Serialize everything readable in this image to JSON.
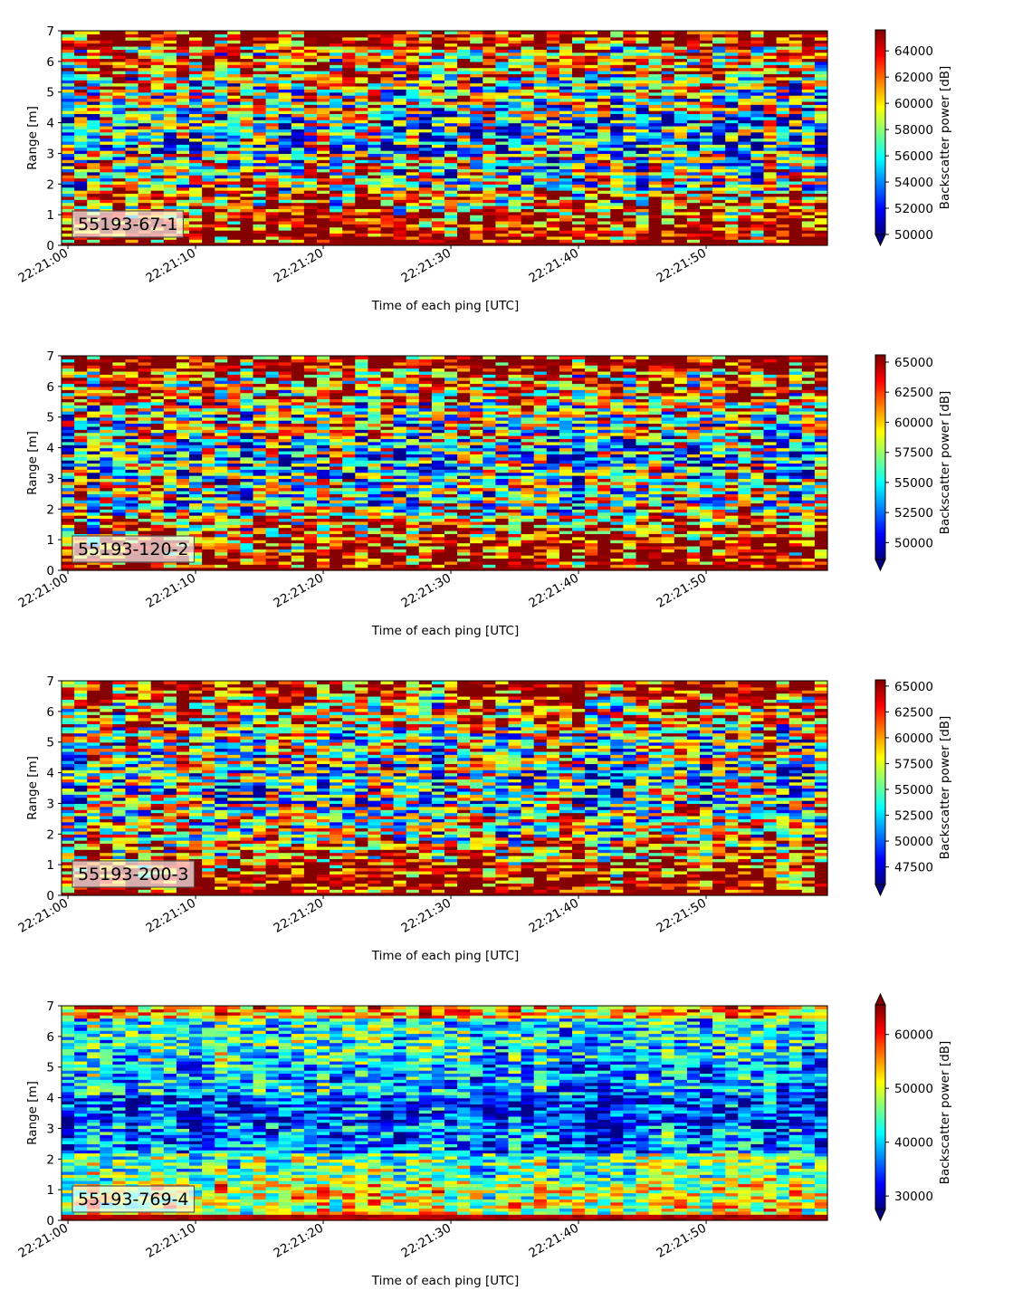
{
  "chart_data": [
    {
      "type": "heatmap",
      "station_label": "55193-67-1",
      "xlabel": "Time of each ping [UTC]",
      "ylabel": "Range [m]",
      "x_ticks": [
        "22:21:00",
        "22:21:10",
        "22:21:20",
        "22:21:30",
        "22:21:40",
        "22:21:50"
      ],
      "y_ticks": [
        0,
        1,
        2,
        3,
        4,
        5,
        6,
        7
      ],
      "xlim_seconds": [
        -0.5,
        59.5
      ],
      "ylim": [
        0,
        7
      ],
      "colorbar": {
        "label": "Backscatter power [dB]",
        "range": [
          50000,
          65600
        ],
        "ticks": [
          50000,
          52000,
          54000,
          56000,
          58000,
          60000,
          62000,
          64000
        ],
        "extend": "min",
        "colormap": "jet"
      },
      "pattern": "bottom",
      "seed": 11
    },
    {
      "type": "heatmap",
      "station_label": "55193-120-2",
      "xlabel": "Time of each ping [UTC]",
      "ylabel": "Range [m]",
      "x_ticks": [
        "22:21:00",
        "22:21:10",
        "22:21:20",
        "22:21:30",
        "22:21:40",
        "22:21:50"
      ],
      "y_ticks": [
        0,
        1,
        2,
        3,
        4,
        5,
        6,
        7
      ],
      "xlim_seconds": [
        -0.5,
        59.5
      ],
      "ylim": [
        0,
        7
      ],
      "colorbar": {
        "label": "Backscatter power [dB]",
        "range": [
          48600,
          65600
        ],
        "ticks": [
          50000,
          52500,
          55000,
          57500,
          60000,
          62500,
          65000
        ],
        "extend": "min",
        "colormap": "jet"
      },
      "pattern": "bottom",
      "seed": 23
    },
    {
      "type": "heatmap",
      "station_label": "55193-200-3",
      "xlabel": "Time of each ping [UTC]",
      "ylabel": "Range [m]",
      "x_ticks": [
        "22:21:00",
        "22:21:10",
        "22:21:20",
        "22:21:30",
        "22:21:40",
        "22:21:50"
      ],
      "y_ticks": [
        0,
        1,
        2,
        3,
        4,
        5,
        6,
        7
      ],
      "xlim_seconds": [
        -0.5,
        59.5
      ],
      "ylim": [
        0,
        7
      ],
      "colorbar": {
        "label": "Backscatter power [dB]",
        "range": [
          45800,
          65600
        ],
        "ticks": [
          47500,
          50000,
          52500,
          55000,
          57500,
          60000,
          62500,
          65000
        ],
        "extend": "min",
        "colormap": "jet"
      },
      "pattern": "bottom",
      "seed": 37
    },
    {
      "type": "heatmap",
      "station_label": "55193-769-4",
      "xlabel": "Time of each ping [UTC]",
      "ylabel": "Range [m]",
      "x_ticks": [
        "22:21:00",
        "22:21:10",
        "22:21:20",
        "22:21:30",
        "22:21:40",
        "22:21:50"
      ],
      "y_ticks": [
        0,
        1,
        2,
        3,
        4,
        5,
        6,
        7
      ],
      "xlim_seconds": [
        -0.5,
        59.5
      ],
      "ylim": [
        0,
        7
      ],
      "colorbar": {
        "label": "Backscatter power [dB]",
        "range": [
          27500,
          65500
        ],
        "ticks": [
          30000,
          40000,
          50000,
          60000
        ],
        "extend": "both",
        "colormap": "jet"
      },
      "pattern": "deep",
      "seed": 53
    }
  ]
}
